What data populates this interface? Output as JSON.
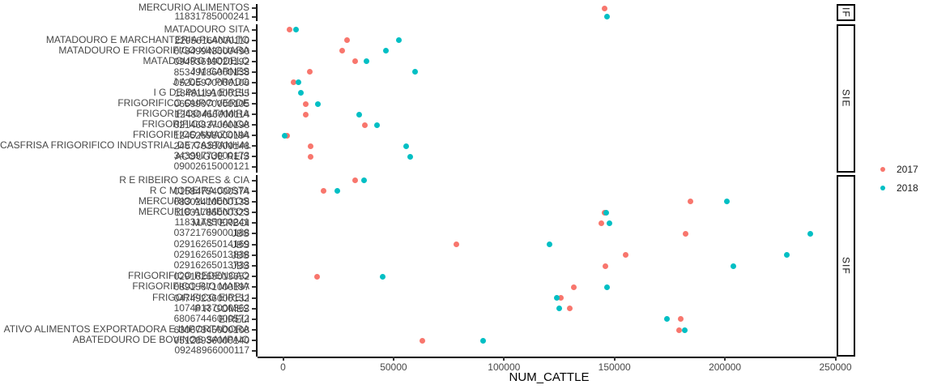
{
  "chart_data": {
    "type": "scatter",
    "title": "",
    "xlabel": "NUM_CATTLE",
    "x_ticks": [
      0,
      50000,
      100000,
      150000,
      200000,
      250000
    ],
    "xlim": [
      0,
      250000
    ],
    "grid": "off",
    "legend_position": "right",
    "series_colors": {
      "2017": "#F8766D",
      "2018": "#00BFC4"
    },
    "facets": [
      {
        "label": "IF",
        "rows": [
          {
            "labels": [
              "MERCURIO ALIMENTOS"
            ]
          },
          {
            "labels": [
              "11831785000241"
            ]
          }
        ],
        "points": [
          {
            "row": 0,
            "year": "2017",
            "value": 145600
          },
          {
            "row": 1,
            "year": "2018",
            "value": 146800
          }
        ]
      },
      {
        "label": "SIE",
        "rows": [
          {
            "labels": [
              "MATADOURO SITA"
            ]
          },
          {
            "labels": [
              "MATADOURO E MARCHANTERIA PLANALTO",
              "22956164000110"
            ]
          },
          {
            "labels": [
              "MATADOURO E FRIGORIFICO XINGUARA",
              "07849943000490"
            ]
          },
          {
            "labels": [
              "MATADOURO MODELO",
              "09493699020192"
            ]
          },
          {
            "labels": [
              "J M CARNES",
              "85349186000138"
            ]
          },
          {
            "labels": [
              "J A DE O PRADO",
              "05205970000106"
            ]
          },
          {
            "labels": [
              "I G DE PAULA EIRELI",
              "18481191000155"
            ]
          },
          {
            "labels": [
              "FRIGORIFICO OURO VERDE",
              "06599070000105"
            ]
          },
          {
            "labels": [
              "FRIGORIFICO ALTAMIRA",
              "12480456000114"
            ]
          },
          {
            "labels": [
              "FRIGORIFICO ALIANCA",
              "02146837000198"
            ]
          },
          {
            "labels": [
              "FRIGORIFICO AMAZONIA",
              "12452698000194"
            ]
          },
          {
            "labels": [
              "CASFRISA FRIGORIFICO INDUSTRIAL DE CASTANHAL",
              "24677638000148"
            ]
          },
          {
            "labels": [
              "34399773000173",
              "ACOUGUE REIS"
            ]
          },
          {
            "labels": [
              "09002615000121"
            ]
          }
        ],
        "points": [
          {
            "row": 0,
            "year": "2017",
            "value": 2900
          },
          {
            "row": 0,
            "year": "2018",
            "value": 5800
          },
          {
            "row": 1,
            "year": "2017",
            "value": 28800
          },
          {
            "row": 1,
            "year": "2018",
            "value": 52300
          },
          {
            "row": 2,
            "year": "2017",
            "value": 26600
          },
          {
            "row": 2,
            "year": "2018",
            "value": 46400
          },
          {
            "row": 3,
            "year": "2017",
            "value": 32800
          },
          {
            "row": 3,
            "year": "2018",
            "value": 37900
          },
          {
            "row": 4,
            "year": "2017",
            "value": 12000
          },
          {
            "row": 4,
            "year": "2018",
            "value": 59700
          },
          {
            "row": 5,
            "year": "2017",
            "value": 4600
          },
          {
            "row": 5,
            "year": "2018",
            "value": 6900
          },
          {
            "row": 6,
            "year": "2018",
            "value": 8000
          },
          {
            "row": 7,
            "year": "2017",
            "value": 10100
          },
          {
            "row": 7,
            "year": "2018",
            "value": 15900
          },
          {
            "row": 8,
            "year": "2017",
            "value": 10100
          },
          {
            "row": 8,
            "year": "2018",
            "value": 34600
          },
          {
            "row": 9,
            "year": "2017",
            "value": 37200
          },
          {
            "row": 9,
            "year": "2018",
            "value": 42400
          },
          {
            "row": 10,
            "year": "2017",
            "value": 1700
          },
          {
            "row": 10,
            "year": "2018",
            "value": 600
          },
          {
            "row": 11,
            "year": "2017",
            "value": 12600
          },
          {
            "row": 11,
            "year": "2018",
            "value": 55900
          },
          {
            "row": 12,
            "year": "2017",
            "value": 12600
          },
          {
            "row": 12,
            "year": "2018",
            "value": 57700
          }
        ]
      },
      {
        "label": "SIF",
        "rows": [
          {
            "labels": [
              "R E RIBEIRO SOARES & CIA"
            ]
          },
          {
            "labels": [
              "R C MOREIRA COSTA",
              "01584754000374"
            ]
          },
          {
            "labels": [
              "MERCURIO ALIMENTOS",
              "08302410000138"
            ]
          },
          {
            "labels": [
              "MERCURIO ALIMENTOS",
              "11831785000323"
            ]
          },
          {
            "labels": [
              "11831785000241",
              "MASTERBOI"
            ]
          },
          {
            "labels": [
              "03721769000188",
              "JBS"
            ]
          },
          {
            "labels": [
              "02916265014169",
              "JBS"
            ]
          },
          {
            "labels": [
              "02916265013838",
              "JBS"
            ]
          },
          {
            "labels": [
              "02916265013733",
              "JBS"
            ]
          },
          {
            "labels": [
              "FRIGORIFICO REDENCAO",
              "02916265013652"
            ]
          },
          {
            "labels": [
              "FRIGORIFICO RIO MARIA",
              "08915671000197"
            ]
          },
          {
            "labels": [
              "FRIGORIFICO EIRELI",
              "04749236000132"
            ]
          },
          {
            "labels": [
              "10748137000362",
              "P R GOMES"
            ]
          },
          {
            "labels": [
              "68067446000572",
              "EIRELI"
            ]
          },
          {
            "labels": [
              "ATIVO ALIMENTOS EXPORTADORA E IMPORTADORA",
              "63067345000108"
            ]
          },
          {
            "labels": [
              "ABATEDOURO DE BOVINOS SAMPAIO",
              "05128936000140"
            ]
          },
          {
            "labels": [
              "09248966000117"
            ]
          }
        ],
        "points": [
          {
            "row": 0,
            "year": "2017",
            "value": 32700
          },
          {
            "row": 0,
            "year": "2018",
            "value": 36600
          },
          {
            "row": 1,
            "year": "2017",
            "value": 18400
          },
          {
            "row": 1,
            "year": "2018",
            "value": 24600
          },
          {
            "row": 2,
            "year": "2017",
            "value": 184500
          },
          {
            "row": 2,
            "year": "2018",
            "value": 200900
          },
          {
            "row": 3,
            "year": "2017",
            "value": 145400
          },
          {
            "row": 3,
            "year": "2018",
            "value": 146200
          },
          {
            "row": 4,
            "year": "2017",
            "value": 144200
          },
          {
            "row": 4,
            "year": "2018",
            "value": 147800
          },
          {
            "row": 5,
            "year": "2017",
            "value": 182100
          },
          {
            "row": 5,
            "year": "2018",
            "value": 238500
          },
          {
            "row": 6,
            "year": "2017",
            "value": 78500
          },
          {
            "row": 6,
            "year": "2018",
            "value": 120600
          },
          {
            "row": 7,
            "year": "2017",
            "value": 155000
          },
          {
            "row": 7,
            "year": "2018",
            "value": 228100
          },
          {
            "row": 8,
            "year": "2017",
            "value": 145900
          },
          {
            "row": 8,
            "year": "2018",
            "value": 203700
          },
          {
            "row": 9,
            "year": "2017",
            "value": 15300
          },
          {
            "row": 9,
            "year": "2018",
            "value": 45000
          },
          {
            "row": 10,
            "year": "2017",
            "value": 131600
          },
          {
            "row": 10,
            "year": "2018",
            "value": 146600
          },
          {
            "row": 11,
            "year": "2017",
            "value": 125900
          },
          {
            "row": 11,
            "year": "2018",
            "value": 124000
          },
          {
            "row": 12,
            "year": "2017",
            "value": 129700
          },
          {
            "row": 12,
            "year": "2018",
            "value": 125100
          },
          {
            "row": 13,
            "year": "2017",
            "value": 179900
          },
          {
            "row": 13,
            "year": "2018",
            "value": 173700
          },
          {
            "row": 14,
            "year": "2017",
            "value": 179200
          },
          {
            "row": 14,
            "year": "2018",
            "value": 182000
          },
          {
            "row": 15,
            "year": "2017",
            "value": 63000
          },
          {
            "row": 15,
            "year": "2018",
            "value": 90500
          }
        ]
      }
    ],
    "legend": {
      "items": [
        {
          "label": "2017",
          "color": "#F8766D"
        },
        {
          "label": "2018",
          "color": "#00BFC4"
        }
      ]
    }
  }
}
